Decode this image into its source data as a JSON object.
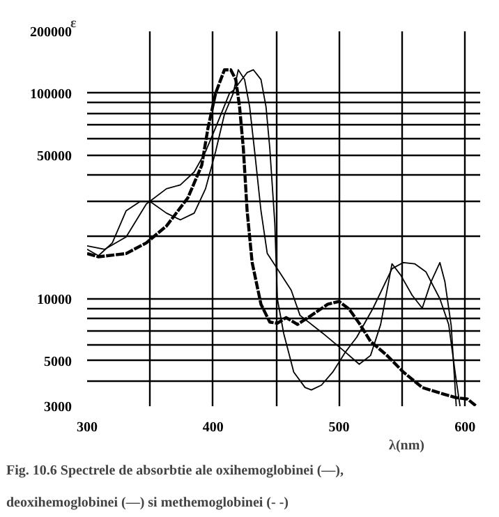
{
  "chart_data": {
    "type": "line",
    "title": "Fig. 10.6 Spectrele de absorbtie ale oxihemoglobinei (—),\ndeoxihemoglobinei (—) si methemoglobinei (- -)",
    "xlabel": "λ(nm)",
    "ylabel": "ε",
    "log": "y",
    "grid": true,
    "marker": "none",
    "line_style": "solid",
    "xlim": [
      300,
      612
    ],
    "ylim": [
      3000,
      200000
    ],
    "xticks": [
      300,
      {
        "value": 350,
        "label": null
      },
      400,
      {
        "value": 450,
        "label": null
      },
      500,
      {
        "value": 550,
        "label": null
      },
      600
    ],
    "yticks": [
      3000,
      {
        "value": 4000,
        "label": null
      },
      5000,
      {
        "value": 6000,
        "label": null
      },
      {
        "value": 7000,
        "label": null
      },
      {
        "value": 8000,
        "label": null
      },
      {
        "value": 9000,
        "label": null
      },
      10000,
      {
        "value": 20000,
        "label": null
      },
      {
        "value": 30000,
        "label": null
      },
      {
        "value": 40000,
        "label": null
      },
      50000,
      {
        "value": 60000,
        "label": null
      },
      {
        "value": 70000,
        "label": null
      },
      {
        "value": 80000,
        "label": null
      },
      {
        "value": 90000,
        "label": null
      },
      100000,
      200000
    ],
    "series": [
      {
        "color": "#000000",
        "x": [
          300,
          309,
          320,
          331,
          342,
          350,
          363,
          374,
          385,
          394,
          402,
          409,
          416,
          420,
          425,
          429,
          433,
          438,
          443,
          451,
          462,
          469,
          487,
          505,
          516,
          525,
          533,
          542,
          549,
          558,
          566,
          573,
          580,
          584,
          589,
          593
        ],
        "values": [
          17400,
          16200,
          18700,
          26800,
          29700,
          29700,
          26100,
          24200,
          26100,
          34300,
          52000,
          79000,
          100000,
          130000,
          116600,
          86000,
          52000,
          26800,
          16600,
          14000,
          11000,
          8300,
          6800,
          5500,
          4800,
          5300,
          7500,
          14800,
          13000,
          10400,
          9000,
          12100,
          15000,
          12100,
          7400,
          3000
        ]
      },
      {
        "color": "#000000",
        "x": [
          300,
          314,
          331,
          347,
          363,
          374,
          385,
          394,
          402,
          413,
          416,
          427,
          432,
          438,
          442,
          445,
          449,
          451,
          456,
          464,
          473,
          478,
          486,
          495,
          505,
          514,
          527,
          542,
          551,
          560,
          569,
          580,
          587,
          593,
          596
        ],
        "values": [
          18100,
          17400,
          20000,
          28900,
          34300,
          35800,
          41400,
          52000,
          68000,
          100000,
          103000,
          126000,
          130000,
          116600,
          86000,
          54000,
          23200,
          10000,
          6800,
          4400,
          3700,
          3600,
          3800,
          4400,
          5500,
          6500,
          9000,
          14000,
          15000,
          14800,
          13500,
          10000,
          7500,
          4000,
          3000
        ]
      },
      {
        "color": "#000000",
        "line_style": "dashed",
        "x": [
          300,
          309,
          331,
          347,
          363,
          380,
          391,
          396,
          402,
          409,
          414,
          418,
          421,
          424,
          427,
          431,
          438,
          445,
          451,
          458,
          467,
          478,
          491,
          500,
          508,
          516,
          525,
          538,
          551,
          566,
          582,
          593,
          602,
          609
        ],
        "values": [
          16600,
          16000,
          16600,
          18700,
          22600,
          31000,
          44600,
          68000,
          100000,
          130000,
          130000,
          116600,
          86000,
          54000,
          26800,
          15000,
          9400,
          7700,
          7600,
          8100,
          7500,
          8300,
          9400,
          9700,
          8900,
          7600,
          6200,
          5300,
          4400,
          3700,
          3450,
          3300,
          3250,
          3000
        ]
      }
    ]
  }
}
